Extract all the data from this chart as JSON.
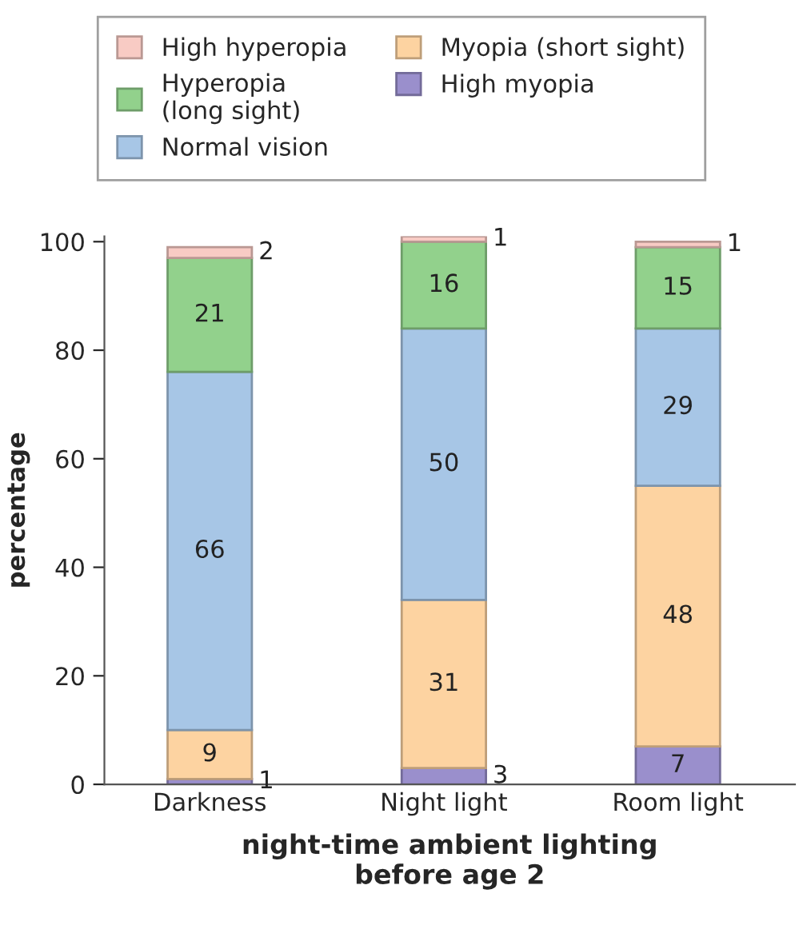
{
  "chart_data": {
    "type": "bar",
    "stacked": true,
    "categories": [
      "Darkness",
      "Night light",
      "Room light"
    ],
    "series": [
      {
        "name": "High myopia",
        "color": "#9a8fcc",
        "values": [
          1,
          3,
          7
        ]
      },
      {
        "name": "Myopia (short sight)",
        "color": "#fdd3a1",
        "values": [
          9,
          31,
          48
        ]
      },
      {
        "name": "Normal vision",
        "color": "#a7c6e6",
        "values": [
          66,
          50,
          29
        ]
      },
      {
        "name": "Hyperopia\n(long sight)",
        "color": "#92d18c",
        "values": [
          21,
          16,
          15
        ]
      },
      {
        "name": "High hyperopia",
        "color": "#f8cbc4",
        "values": [
          2,
          1,
          1
        ]
      }
    ],
    "ylim": [
      0,
      101
    ],
    "yticks": [
      0,
      20,
      40,
      60,
      80,
      100
    ],
    "ylabel": "percentage",
    "xlabel": "night-time ambient lighting\nbefore age 2",
    "data_labels": true,
    "grid": false,
    "legend": "top"
  }
}
